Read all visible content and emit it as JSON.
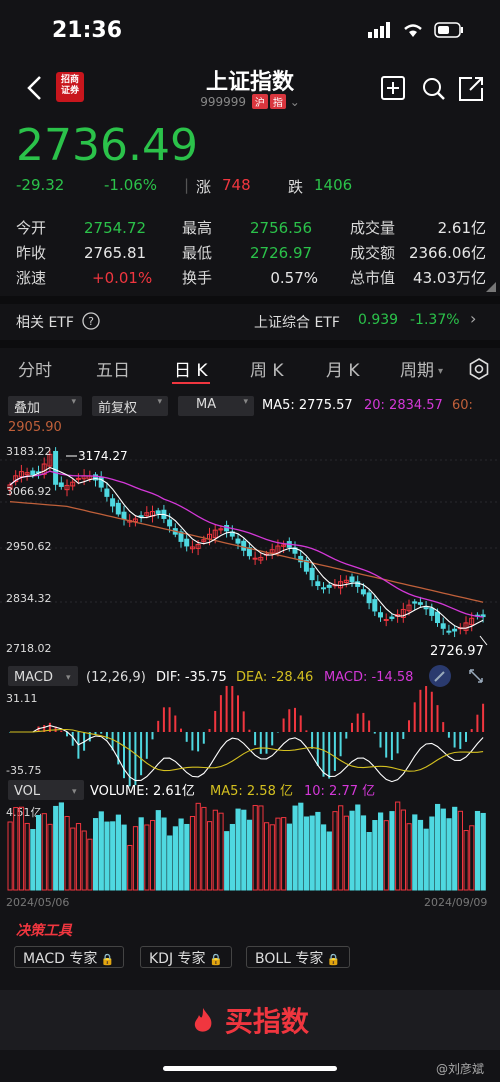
{
  "status": {
    "time": "21:36"
  },
  "header": {
    "logo_line1": "招商",
    "logo_line2": "证券",
    "title": "上证指数",
    "code": "999999",
    "tag1": "沪",
    "tag2": "指"
  },
  "quote": {
    "price": "2736.49",
    "change": "-29.32",
    "change_pct": "-1.06%",
    "up_label": "涨",
    "up_count": "748",
    "down_label": "跌",
    "down_count": "1406"
  },
  "stats": {
    "open_label": "今开",
    "open": "2754.72",
    "high_label": "最高",
    "high": "2756.56",
    "volume_label": "成交量",
    "volume": "2.61亿",
    "prev_label": "昨收",
    "prev": "2765.81",
    "low_label": "最低",
    "low": "2726.97",
    "amount_label": "成交额",
    "amount": "2366.06亿",
    "speed_label": "涨速",
    "speed": "+0.01%",
    "turnover_label": "换手",
    "turnover": "0.57%",
    "mcap_label": "总市值",
    "mcap": "43.03万亿"
  },
  "etf": {
    "label": "相关 ETF",
    "name": "上证综合 ETF",
    "price": "0.939",
    "pct": "-1.37%"
  },
  "tabs": [
    "分时",
    "五日",
    "日 K",
    "周 K",
    "月 K",
    "周期"
  ],
  "controls": {
    "overlay": "叠加",
    "adjust": "前复权",
    "ma": "MA",
    "ma5": "MA5: 2775.57",
    "ma20": "20: 2834.57",
    "ma60_label": "60:",
    "ma60": "2905.90"
  },
  "kline": {
    "y_labels": [
      "3183.22",
      "3066.92",
      "2950.62",
      "2834.32",
      "2718.02"
    ],
    "high_mark": "3174.27",
    "low_mark": "2726.97"
  },
  "macd": {
    "label": "MACD",
    "params": "(12,26,9)",
    "dif": "DIF: -35.75",
    "dea": "DEA: -28.46",
    "macd": "MACD: -14.58",
    "top": "31.11",
    "bottom": "-35.75"
  },
  "vol": {
    "label": "VOL",
    "volume": "VOLUME: 2.61亿",
    "ma5": "MA5: 2.58 亿",
    "ma10": "10: 2.77 亿",
    "top": "4.51亿",
    "start_date": "2024/05/06",
    "end_date": "2024/09/09"
  },
  "tools": {
    "title": "决策工具",
    "buttons": [
      "MACD 专家",
      "KDJ 专家",
      "BOLL 专家"
    ]
  },
  "buy": {
    "label": "买指数"
  },
  "watermark": "@刘彦斌",
  "colors": {
    "up": "#f0363f",
    "down": "#2bc24a",
    "cyan": "#4fd8e0",
    "ma20": "#d438d8",
    "ma60": "#c0603a",
    "ma5": "#ffffff",
    "dea": "#d4c020"
  }
}
